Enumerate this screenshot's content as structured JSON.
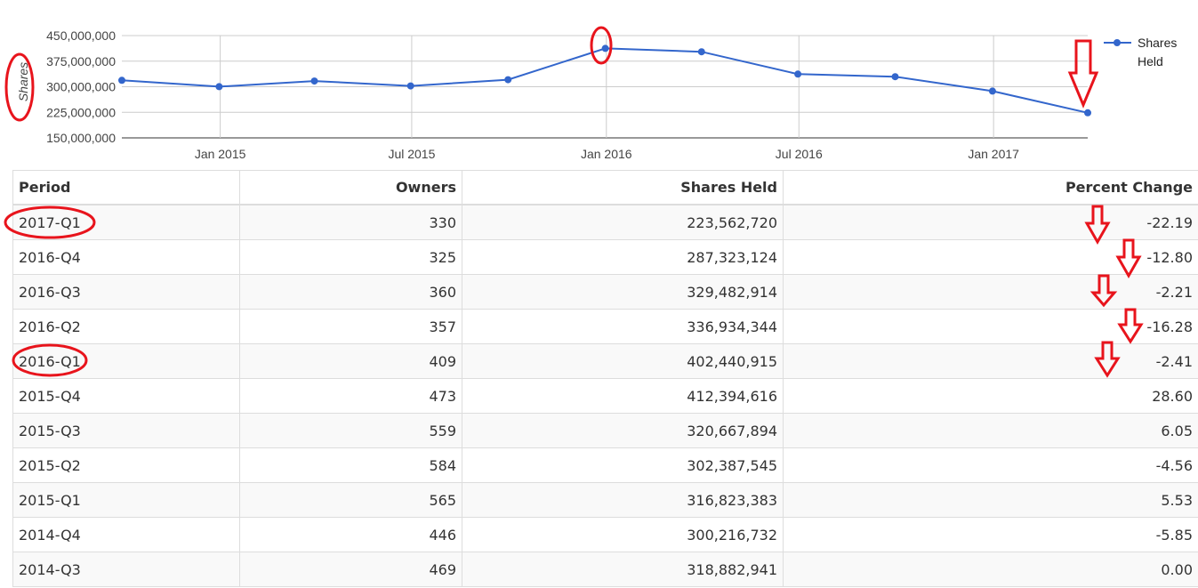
{
  "chart_data": {
    "type": "line",
    "ylabel": "Shares",
    "ylim": [
      150000000,
      450000000
    ],
    "yticks": [
      "450,000,000",
      "375,000,000",
      "300,000,000",
      "225,000,000",
      "150,000,000"
    ],
    "ytick_values": [
      450000000,
      375000000,
      300000000,
      225000000,
      150000000
    ],
    "xticks": [
      "Jan 2015",
      "Jul 2015",
      "Jan 2016",
      "Jul 2016",
      "Jan 2017"
    ],
    "xtick_dates": [
      "2015-01-01",
      "2015-07-01",
      "2016-01-01",
      "2016-07-01",
      "2017-01-01"
    ],
    "x_range": [
      "2014-09-30",
      "2017-03-31"
    ],
    "grid": true,
    "legend_position": "right",
    "series": [
      {
        "name": "Shares Held",
        "color": "#3366cc",
        "x": [
          "2014-09-30",
          "2014-12-31",
          "2015-03-31",
          "2015-06-30",
          "2015-09-30",
          "2015-12-31",
          "2016-03-31",
          "2016-06-30",
          "2016-09-30",
          "2016-12-31",
          "2017-03-31"
        ],
        "values": [
          318882941,
          300216732,
          316823383,
          302387545,
          320667894,
          412394616,
          402440915,
          336934344,
          329482914,
          287323124,
          223562720
        ]
      }
    ]
  },
  "table": {
    "headers": [
      "Period",
      "Owners",
      "Shares Held",
      "Percent Change"
    ],
    "rows": [
      [
        "2017-Q1",
        "330",
        "223,562,720",
        "-22.19"
      ],
      [
        "2016-Q4",
        "325",
        "287,323,124",
        "-12.80"
      ],
      [
        "2016-Q3",
        "360",
        "329,482,914",
        "-2.21"
      ],
      [
        "2016-Q2",
        "357",
        "336,934,344",
        "-16.28"
      ],
      [
        "2016-Q1",
        "409",
        "402,440,915",
        "-2.41"
      ],
      [
        "2015-Q4",
        "473",
        "412,394,616",
        "28.60"
      ],
      [
        "2015-Q3",
        "559",
        "320,667,894",
        "6.05"
      ],
      [
        "2015-Q2",
        "584",
        "302,387,545",
        "-4.56"
      ],
      [
        "2015-Q1",
        "565",
        "316,823,383",
        "5.53"
      ],
      [
        "2014-Q4",
        "446",
        "300,216,732",
        "-5.85"
      ],
      [
        "2014-Q3",
        "469",
        "318,882,941",
        "0.00"
      ]
    ]
  },
  "annotations": {
    "color": "#e8141c",
    "items": [
      "ellipse around y-axis label",
      "ellipse around Jan 2016 peak point",
      "down arrow at last point",
      "ellipse around 2017-Q1",
      "ellipse around 2016-Q1",
      "down arrows beside percent changes"
    ]
  }
}
